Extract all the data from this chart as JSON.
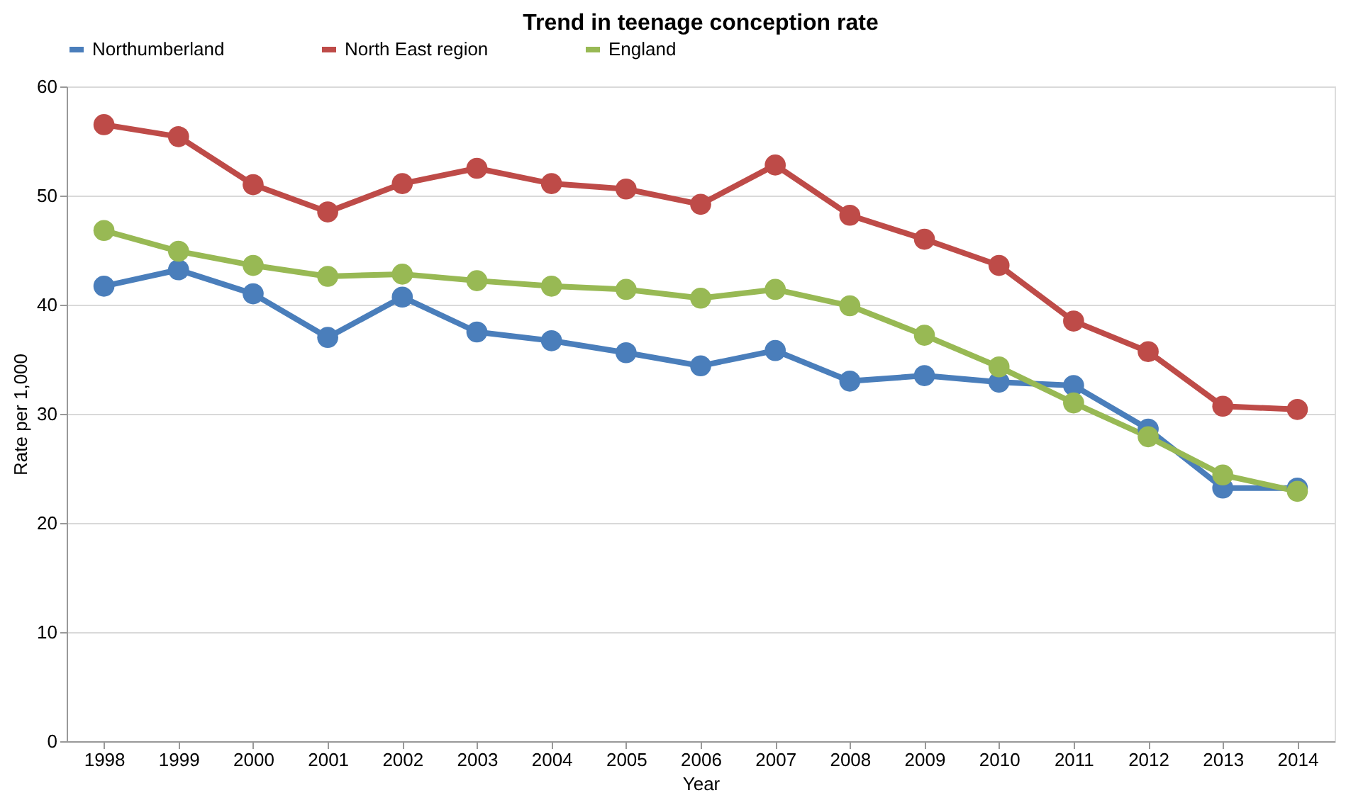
{
  "chart_data": {
    "type": "line",
    "title": "Trend in teenage conception rate",
    "xlabel": "Year",
    "ylabel": "Rate per 1,000",
    "categories": [
      "1998",
      "1999",
      "2000",
      "2001",
      "2002",
      "2003",
      "2004",
      "2005",
      "2006",
      "2007",
      "2008",
      "2009",
      "2010",
      "2011",
      "2012",
      "2013",
      "2014"
    ],
    "series": [
      {
        "name": "Northumberland",
        "color": "#4a7ebb",
        "values": [
          41.7,
          43.2,
          41.0,
          37.0,
          40.7,
          37.5,
          36.7,
          35.6,
          34.4,
          35.8,
          33.0,
          33.5,
          32.9,
          32.6,
          28.6,
          23.2,
          23.2
        ]
      },
      {
        "name": "North East region",
        "color": "#be4b48",
        "values": [
          56.5,
          55.4,
          51.0,
          48.5,
          51.1,
          52.5,
          51.1,
          50.6,
          49.2,
          52.8,
          48.2,
          46.0,
          43.6,
          38.5,
          35.7,
          30.7,
          30.4
        ]
      },
      {
        "name": "England",
        "color": "#98b954",
        "values": [
          46.8,
          44.9,
          43.6,
          42.6,
          42.8,
          42.2,
          41.7,
          41.4,
          40.6,
          41.4,
          39.9,
          37.2,
          34.3,
          31.0,
          27.9,
          24.4,
          22.9
        ]
      }
    ],
    "ylim": [
      0,
      60
    ],
    "yticks": [
      0,
      10,
      20,
      30,
      40,
      50,
      60
    ],
    "grid": "y",
    "legend": "top",
    "marker": "circle",
    "line_style": "solid"
  }
}
